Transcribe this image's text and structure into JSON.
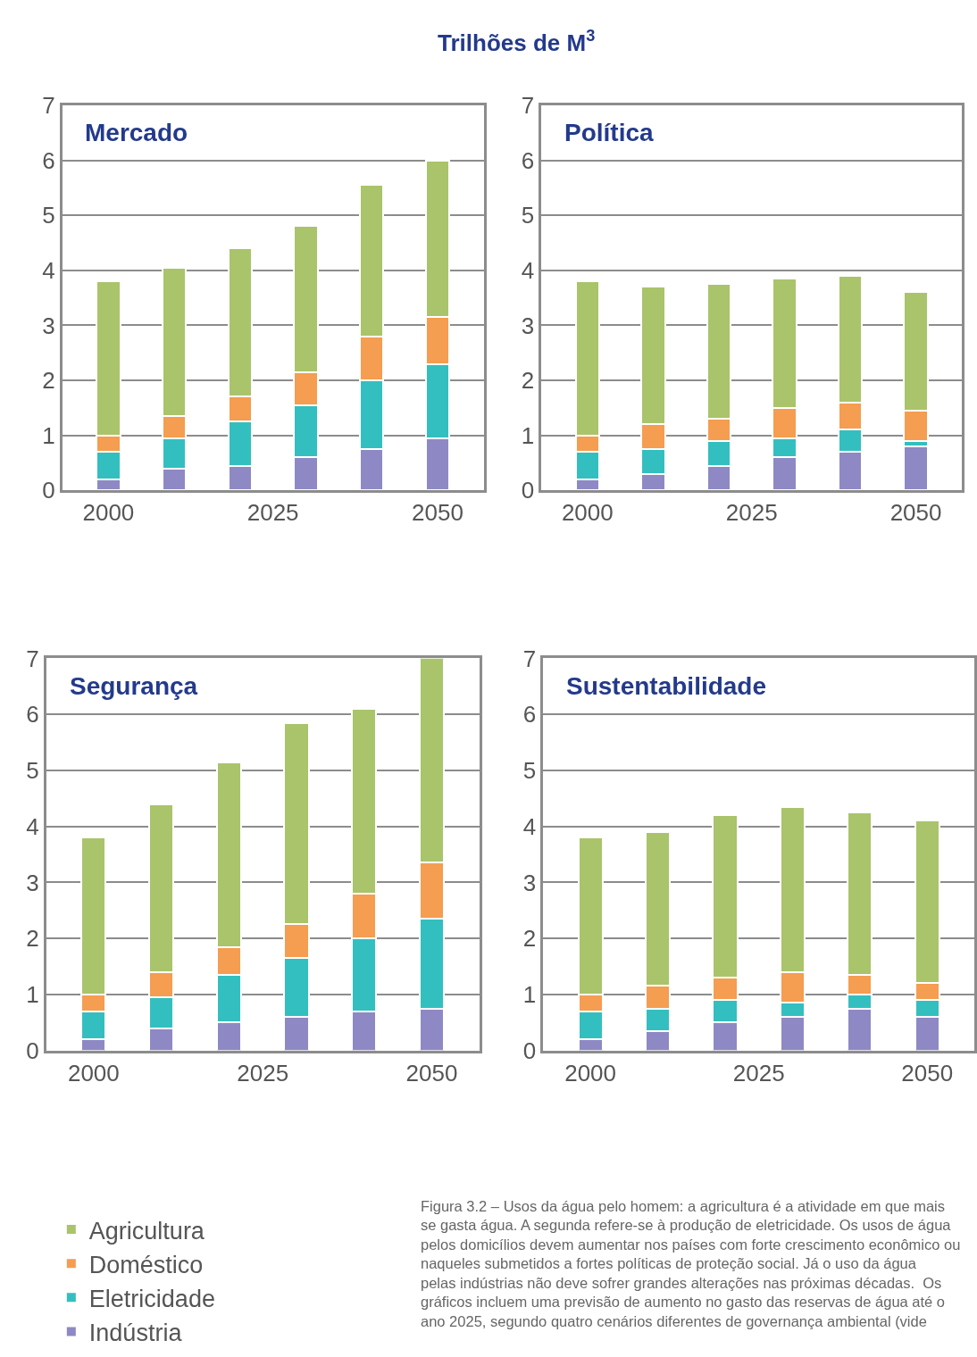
{
  "chart_data": [
    {
      "type": "bar",
      "title": "Mercado",
      "annotations": [
        "Trilhões de M$^{3}$"
      ],
      "stacked": true,
      "x": [
        2000,
        2010,
        2020,
        2030,
        2040,
        2050
      ],
      "xlim": [
        1993,
        2057
      ],
      "xticks": [
        2000,
        2025,
        2050
      ],
      "ylim": [
        0,
        7
      ],
      "yticks": [
        0,
        1,
        2,
        3,
        4,
        5,
        6,
        7
      ],
      "grid": "y",
      "legend": "bottom left",
      "series": [
        {
          "name": "Indústria",
          "color": "#8e89c4",
          "values": [
            0.2,
            0.4,
            0.45,
            0.6,
            0.75,
            0.95
          ]
        },
        {
          "name": "Eletricidade",
          "color": "#33bfbf",
          "values": [
            0.5,
            0.55,
            0.8,
            0.95,
            1.25,
            1.35
          ]
        },
        {
          "name": "Doméstico",
          "color": "#f59d50",
          "values": [
            0.3,
            0.4,
            0.45,
            0.6,
            0.8,
            0.85
          ]
        },
        {
          "name": "Agricultura",
          "color": "#a9c46a",
          "values": [
            2.8,
            2.7,
            2.7,
            2.65,
            2.75,
            2.85
          ]
        }
      ]
    },
    {
      "type": "bar",
      "title": "Política",
      "stacked": true,
      "x": [
        2000,
        2010,
        2020,
        2030,
        2040,
        2050
      ],
      "xlim": [
        1993,
        2057
      ],
      "xticks": [
        2000,
        2025,
        2050
      ],
      "ylim": [
        0,
        7
      ],
      "yticks": [
        0,
        1,
        2,
        3,
        4,
        5,
        6,
        7
      ],
      "grid": "y",
      "series": [
        {
          "color": "#8e89c4",
          "values": [
            0.2,
            0.3,
            0.45,
            0.6,
            0.7,
            0.8
          ]
        },
        {
          "color": "#33bfbf",
          "values": [
            0.5,
            0.45,
            0.45,
            0.35,
            0.4,
            0.1
          ]
        },
        {
          "color": "#f59d50",
          "values": [
            0.3,
            0.45,
            0.4,
            0.55,
            0.5,
            0.55
          ]
        },
        {
          "color": "#a9c46a",
          "values": [
            2.8,
            2.5,
            2.45,
            2.35,
            2.3,
            2.15
          ]
        }
      ]
    },
    {
      "type": "bar",
      "title": "Segurança",
      "stacked": true,
      "x": [
        2000,
        2010,
        2020,
        2030,
        2040,
        2050
      ],
      "xlim": [
        1993,
        2057
      ],
      "xticks": [
        2000,
        2025,
        2050
      ],
      "ylim": [
        0,
        7
      ],
      "yticks": [
        0,
        1,
        2,
        3,
        4,
        5,
        6,
        7
      ],
      "grid": "y",
      "series": [
        {
          "color": "#8e89c4",
          "values": [
            0.2,
            0.4,
            0.5,
            0.6,
            0.7,
            0.75
          ]
        },
        {
          "color": "#33bfbf",
          "values": [
            0.5,
            0.55,
            0.85,
            1.05,
            1.3,
            1.6
          ]
        },
        {
          "color": "#f59d50",
          "values": [
            0.3,
            0.45,
            0.5,
            0.6,
            0.8,
            1.0
          ]
        },
        {
          "color": "#a9c46a",
          "values": [
            2.8,
            3.0,
            3.3,
            3.6,
            3.3,
            3.65
          ]
        }
      ]
    },
    {
      "type": "bar",
      "title": "Sustentabilidade",
      "stacked": true,
      "x": [
        2000,
        2010,
        2020,
        2030,
        2040,
        2050
      ],
      "xlim": [
        1993,
        2057
      ],
      "xticks": [
        2000,
        2025,
        2050
      ],
      "ylim": [
        0,
        7
      ],
      "yticks": [
        0,
        1,
        2,
        3,
        4,
        5,
        6,
        7
      ],
      "grid": "y",
      "annotations": [
        "Figura 3.2 – Usos da água pelo homem: a agricultura é a atividade em que mais se gasta água. A segunda refere-se à produção de eletricidade. Os usos de água pelos domicílios devem aumentar nos países com forte crescimento econômico ou naqueles submetidos a fortes políticas de proteção social. Já o uso da água pelas indústrias não deve sofrer grandes alterações nas próximas décadas.  Os gráficos incluem uma previsão de aumento no gasto das reservas de água até o ano 2025, segundo quatro cenários diferentes de governança ambiental (vide"
      ],
      "series": [
        {
          "color": "#8e89c4",
          "values": [
            0.2,
            0.35,
            0.5,
            0.6,
            0.75,
            0.6
          ]
        },
        {
          "color": "#33bfbf",
          "values": [
            0.5,
            0.4,
            0.4,
            0.25,
            0.25,
            0.3
          ]
        },
        {
          "color": "#f59d50",
          "values": [
            0.3,
            0.4,
            0.4,
            0.55,
            0.35,
            0.3
          ]
        },
        {
          "color": "#a9c46a",
          "values": [
            2.8,
            2.75,
            2.9,
            2.95,
            2.9,
            2.9
          ]
        }
      ]
    }
  ]
}
